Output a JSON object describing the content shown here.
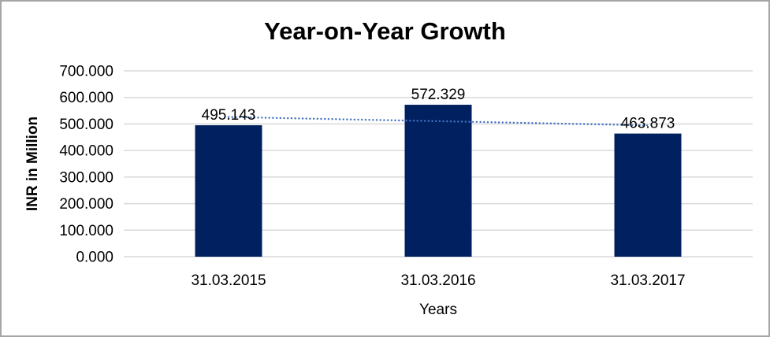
{
  "chart_data": {
    "type": "bar",
    "title": "Year-on-Year Growth",
    "xlabel": "Years",
    "ylabel": "INR in Million",
    "categories": [
      "31.03.2015",
      "31.03.2016",
      "31.03.2017"
    ],
    "values": [
      495.143,
      572.329,
      463.873
    ],
    "data_labels": [
      "495.143",
      "572.329",
      "463.873"
    ],
    "y_tick_labels": [
      "0.000",
      "100.000",
      "200.000",
      "300.000",
      "400.000",
      "500.000",
      "600.000",
      "700.000"
    ],
    "y_tick_values": [
      0,
      100,
      200,
      300,
      400,
      500,
      600,
      700
    ],
    "ylim": [
      0,
      700
    ],
    "grid": true,
    "legend": false,
    "trendline": {
      "type": "linear",
      "style": "dotted"
    },
    "colors": {
      "bar": "#002060",
      "trend": "#4472C4",
      "grid": "#d9d9d9",
      "text": "#000000",
      "frame": "#a6a6a6"
    }
  }
}
